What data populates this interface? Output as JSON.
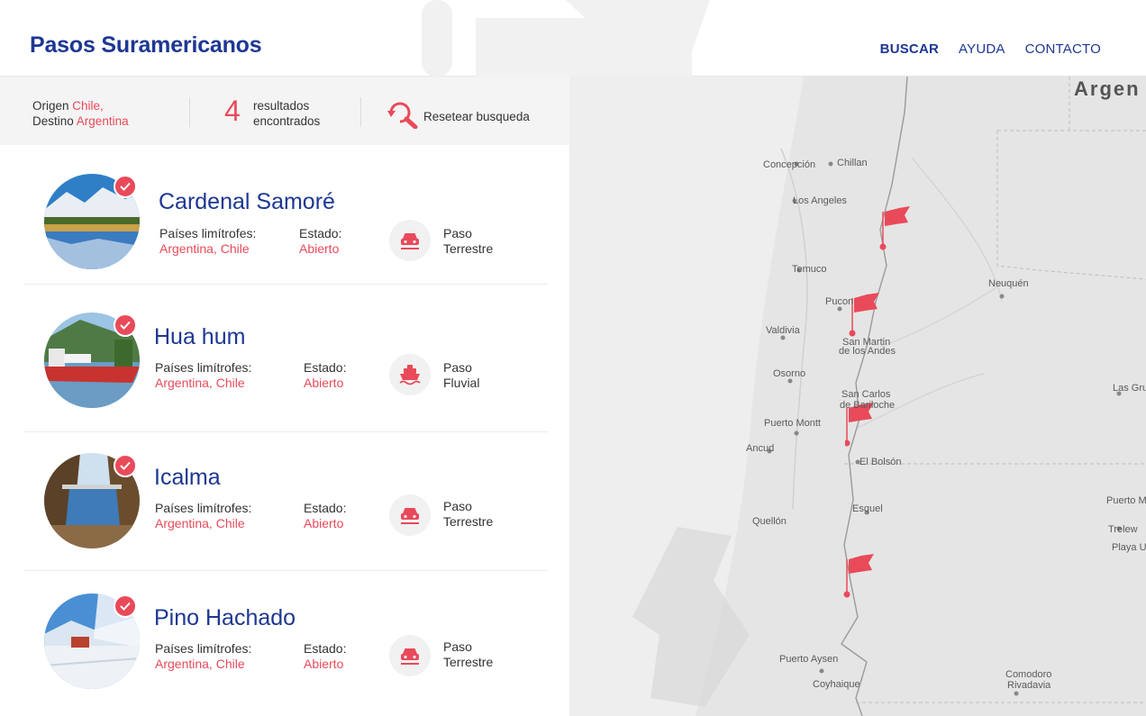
{
  "header": {
    "brand": "Pasos Suramericanos",
    "nav": [
      {
        "label": "BUSCAR",
        "active": true
      },
      {
        "label": "AYUDA",
        "active": false
      },
      {
        "label": "CONTACTO",
        "active": false
      }
    ]
  },
  "summary": {
    "origin_label": "Origen",
    "origin_value": "Chile,",
    "destination_label": "Destino",
    "destination_value": "Argentina",
    "count": "4",
    "count_line1": "resultados",
    "count_line2": "encontrados",
    "reset_label": "Resetear busqueda"
  },
  "results": [
    {
      "name": "Cardenal Samoré",
      "countries_label": "Países limítrofes:",
      "countries": "Argentina, Chile",
      "status_label": "Estado:",
      "status": "Abierto",
      "type_line1": "Paso",
      "type_line2": "Terrestre",
      "type_icon": "car-icon"
    },
    {
      "name": "Hua hum",
      "countries_label": "Países limítrofes:",
      "countries": "Argentina, Chile",
      "status_label": "Estado:",
      "status": "Abierto",
      "type_line1": "Paso",
      "type_line2": "Fluvial",
      "type_icon": "ferry-icon"
    },
    {
      "name": "Icalma",
      "countries_label": "Países limítrofes:",
      "countries": "Argentina, Chile",
      "status_label": "Estado:",
      "status": "Abierto",
      "type_line1": "Paso",
      "type_line2": "Terrestre",
      "type_icon": "car-icon"
    },
    {
      "name": "Pino Hachado",
      "countries_label": "Países limítrofes:",
      "countries": "Argentina, Chile",
      "status_label": "Estado:",
      "status": "Abierto",
      "type_line1": "Paso",
      "type_line2": "Terrestre",
      "type_icon": "car-icon"
    }
  ],
  "map": {
    "country_label": "Argen",
    "places": [
      "Concepción",
      "Chillan",
      "Los Angeles",
      "Temuco",
      "Neuquén",
      "Pucon",
      "Valdivia",
      "San Martin",
      "de los Andes",
      "Osorno",
      "San Carlos",
      "de Bariloche",
      "Las Gru",
      "Puerto Montt",
      "Ancud",
      "El Bolsón",
      "Esquel",
      "Quellón",
      "Puerto M",
      "Trelew",
      "Playa U",
      "Puerto Aysen",
      "Comodoro",
      "Rivadavia",
      "Coyhaique"
    ]
  },
  "colors": {
    "brand_blue": "#1d3793",
    "accent_red": "#e94a5a",
    "map_bg": "#e5e5e5"
  }
}
